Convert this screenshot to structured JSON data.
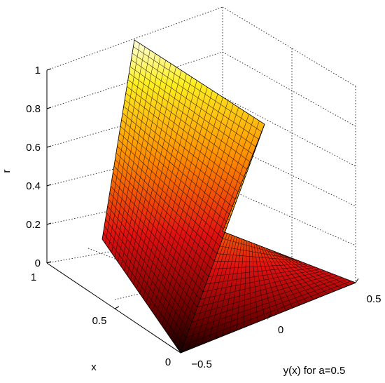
{
  "chart_data": {
    "type": "surface",
    "title": "",
    "xlabel": "y(x) for a=0.5",
    "ylabel": "x",
    "zlabel": "r",
    "y_axis": {
      "range": [
        -0.5,
        0.5
      ],
      "ticks": [
        "−0.5",
        "0",
        "0.5"
      ]
    },
    "x_axis": {
      "range": [
        0,
        1
      ],
      "ticks": [
        "0",
        "0.5",
        "1"
      ]
    },
    "z_axis": {
      "range": [
        0,
        1
      ],
      "ticks": [
        "0",
        "0.2",
        "0.4",
        "0.6",
        "0.8",
        "1"
      ]
    },
    "grid": true,
    "colormap": "hot",
    "edge_color": "#000000",
    "surface_points": [
      {
        "x": 0,
        "y": -0.5,
        "r": 0
      },
      {
        "x": 0,
        "y": 0,
        "r": 0.5
      },
      {
        "x": 0,
        "y": 0.5,
        "r": 0
      },
      {
        "x": 1,
        "y": -0.5,
        "r": 0
      },
      {
        "x": 1,
        "y": 0,
        "r": 1
      },
      {
        "x": 1,
        "y": 0.5,
        "r": 0
      }
    ]
  }
}
